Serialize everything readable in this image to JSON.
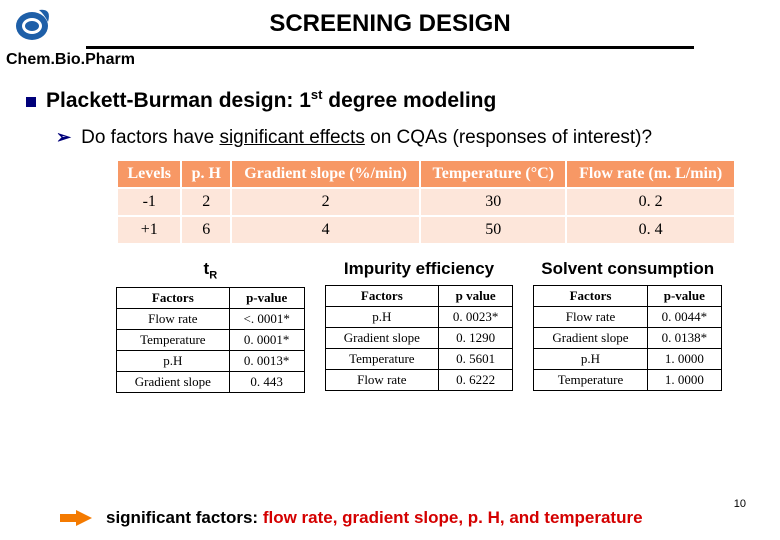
{
  "title": "SCREENING DESIGN",
  "brand_parts": [
    "Chem.",
    "Bio.",
    "Pharm"
  ],
  "bullet1": {
    "pre": "Plackett-Burman design: 1",
    "sup": "st",
    "post": " degree modeling"
  },
  "sub1": {
    "pre": "Do factors have ",
    "ul": "significant effects",
    "post": " on CQAs (responses of interest)?"
  },
  "levels": {
    "headers": [
      "Levels",
      "p. H",
      "Gradient slope (%/min)",
      "Temperature (°C)",
      "Flow rate (m. L/min)"
    ],
    "rows": [
      [
        "-1",
        "2",
        "2",
        "30",
        "0. 2"
      ],
      [
        "+1",
        "6",
        "4",
        "50",
        "0. 4"
      ]
    ]
  },
  "responses": [
    {
      "label": "t",
      "sub": "R",
      "pv_header": [
        "Factors",
        "p-value"
      ],
      "rows": [
        [
          "Flow rate",
          "<. 0001*"
        ],
        [
          "Temperature",
          "0. 0001*"
        ],
        [
          "p.H",
          "0. 0013*"
        ],
        [
          "Gradient slope",
          "0. 443"
        ]
      ]
    },
    {
      "label": "Impurity efficiency",
      "pv_header": [
        "Factors",
        "p value"
      ],
      "rows": [
        [
          "p.H",
          "0. 0023*"
        ],
        [
          "Gradient slope",
          "0. 1290"
        ],
        [
          "Temperature",
          "0. 5601"
        ],
        [
          "Flow rate",
          "0. 6222"
        ]
      ]
    },
    {
      "label": "Solvent consumption",
      "pv_header": [
        "Factors",
        "p-value"
      ],
      "rows": [
        [
          "Flow rate",
          "0. 0044*"
        ],
        [
          "Gradient slope",
          "0. 0138*"
        ],
        [
          "p.H",
          "1. 0000"
        ],
        [
          "Temperature",
          "1. 0000"
        ]
      ]
    }
  ],
  "footer": {
    "black": "significant factors: ",
    "red": "flow rate, gradient slope, p. H, and temperature"
  },
  "pagenum": "10",
  "colors": {
    "header_bg": "#f79865",
    "cell_bg": "#fde6da",
    "accent": "#00007a",
    "arrow": "#f47a00",
    "red": "#d40000"
  }
}
